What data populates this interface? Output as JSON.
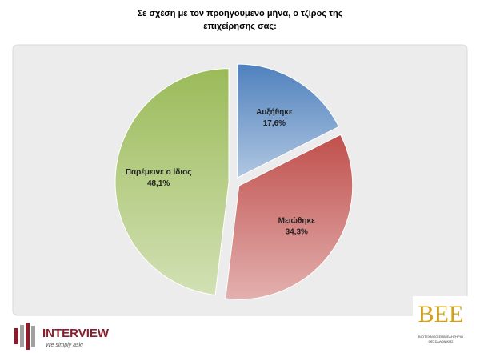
{
  "chart_data": {
    "type": "pie",
    "title": [
      "Σε σχέση με τον προηγούμενο μήνα, ο τζίρος της",
      "επιχείρησης σας:"
    ],
    "categories": [
      "Αυξήθηκε",
      "Μειώθηκε",
      "Παρέμεινε ο ίδιος"
    ],
    "values": [
      17.6,
      34.3,
      48.1
    ],
    "value_labels": [
      "17,6%",
      "34,3%",
      "48,1%"
    ],
    "colors": [
      "#4f81bd",
      "#c0504d",
      "#9bbb59"
    ]
  },
  "logos": {
    "interview": "INTERVIEW",
    "interview_slogan": "We simply ask!",
    "bee": "ΒΕΕ",
    "bee_name": [
      "ΒΙΟΤΕΧΝΙΚΟ ΕΠΙΜΕΛΗΤΗΡΙΟ",
      "ΘΕΣΣΑΛΟΝΙΚΗΣ"
    ]
  }
}
